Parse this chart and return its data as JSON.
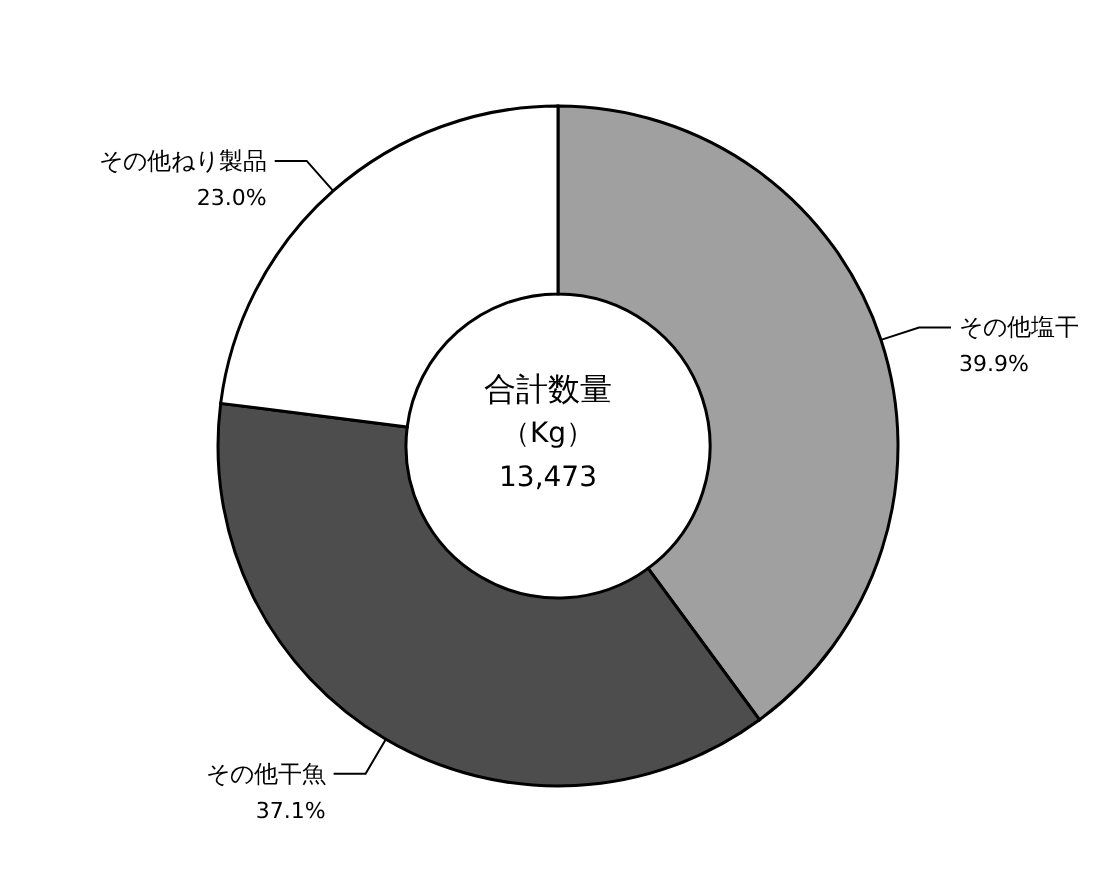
{
  "chart_data": {
    "type": "donut",
    "categories": [
      "その他塩干",
      "その他干魚",
      "その他ねり製品"
    ],
    "values": [
      39.9,
      37.1,
      23.0
    ],
    "value_labels": [
      "39.9%",
      "37.1%",
      "23.0%"
    ],
    "colors": [
      "#a0a0a0",
      "#4d4d4d",
      "#ffffff"
    ],
    "annotations": [
      "合計数量",
      "（Kg）",
      "13,473"
    ],
    "legend": false
  }
}
